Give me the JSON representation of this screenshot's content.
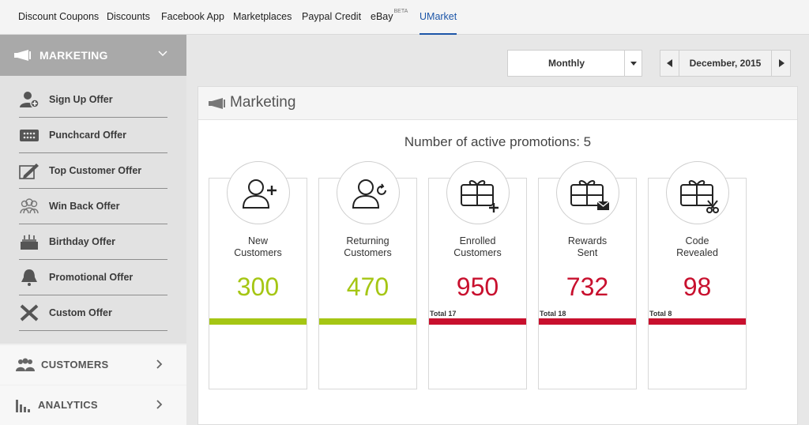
{
  "nav": {
    "tabs": [
      {
        "label": "Discount Coupons"
      },
      {
        "label": "Discounts"
      },
      {
        "label": "Facebook App"
      },
      {
        "label": "Marketplaces"
      },
      {
        "label": "Paypal Credit"
      },
      {
        "label": "eBay",
        "badge": "BETA"
      },
      {
        "label": "UMarket"
      }
    ],
    "active": "UMarket",
    "active_color": "#1d56a8"
  },
  "sidebar": {
    "header": {
      "label": "MARKETING",
      "icon": "megaphone-icon"
    },
    "offers": [
      {
        "label": "Sign Up Offer",
        "icon": "add-user-icon"
      },
      {
        "label": "Punchcard Offer",
        "icon": "punchcard-icon"
      },
      {
        "label": "Top Customer Offer",
        "icon": "pen-icon"
      },
      {
        "label": "Win Back Offer",
        "icon": "users-icon"
      },
      {
        "label": "Birthday Offer",
        "icon": "cake-icon"
      },
      {
        "label": "Promotional Offer",
        "icon": "bell-icon"
      },
      {
        "label": "Custom Offer",
        "icon": "tools-icon"
      }
    ],
    "sections": [
      {
        "label": "CUSTOMERS",
        "icon": "users-icon"
      },
      {
        "label": "ANALYTICS",
        "icon": "bar-chart-icon"
      }
    ]
  },
  "toolbar": {
    "period": "Monthly",
    "date": "December, 2015"
  },
  "panel": {
    "title": "Marketing",
    "promotions_text": "Number of active promotions: 5",
    "cards": [
      {
        "label": [
          "New",
          "Customers"
        ],
        "value": "300",
        "total": "",
        "color": "#a5c614",
        "icon": "add-user-icon"
      },
      {
        "label": [
          "Returning",
          "Customers"
        ],
        "value": "470",
        "total": "",
        "color": "#a5c614",
        "icon": "returning-user-icon"
      },
      {
        "label": [
          "Enrolled",
          "Customers"
        ],
        "value": "950",
        "total": "Total 17",
        "color": "#c8102e",
        "icon": "gift-card-add-icon"
      },
      {
        "label": [
          "Rewards",
          "Sent"
        ],
        "value": "732",
        "total": "Total 18",
        "color": "#c8102e",
        "icon": "gift-card-mail-icon"
      },
      {
        "label": [
          "Code",
          "Revealed"
        ],
        "value": "98",
        "total": "Total 8",
        "color": "#c8102e",
        "icon": "gift-card-scissors-icon"
      }
    ]
  }
}
